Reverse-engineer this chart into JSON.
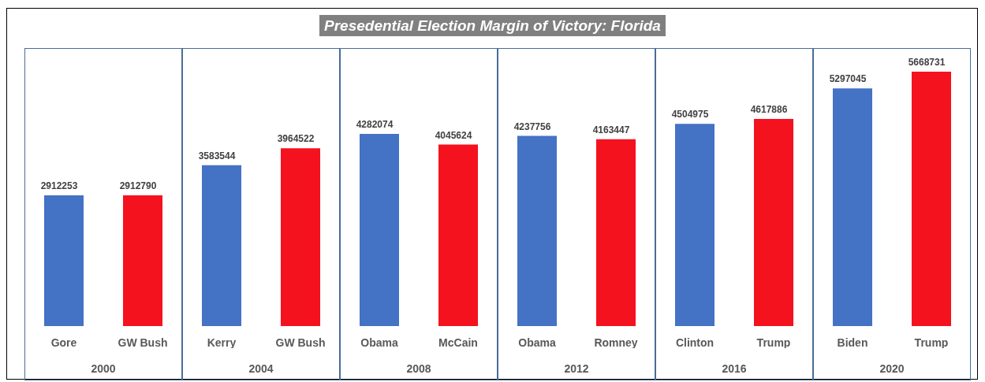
{
  "chart_data": {
    "type": "bar",
    "title": "Presedential Election Margin of Victory: Florida",
    "categories": [
      "Gore",
      "GW Bush",
      "Kerry",
      "GW Bush",
      "Obama",
      "McCain",
      "Obama",
      "Romney",
      "Clinton",
      "Trump",
      "Biden",
      "Trump"
    ],
    "values": [
      2912253,
      2912790,
      3583544,
      3964522,
      4282074,
      4045624,
      4237756,
      4163447,
      4504975,
      4617886,
      5297045,
      5668731
    ],
    "colors": [
      "#4472c4",
      "#f5121f",
      "#4472c4",
      "#f5121f",
      "#4472c4",
      "#f5121f",
      "#4472c4",
      "#f5121f",
      "#4472c4",
      "#f5121f",
      "#4472c4",
      "#f5121f"
    ],
    "annotations": [
      "2000",
      "2004",
      "2008",
      "2012",
      "2016",
      "2020"
    ],
    "data_labels": true,
    "tick_labels": "x"
  }
}
